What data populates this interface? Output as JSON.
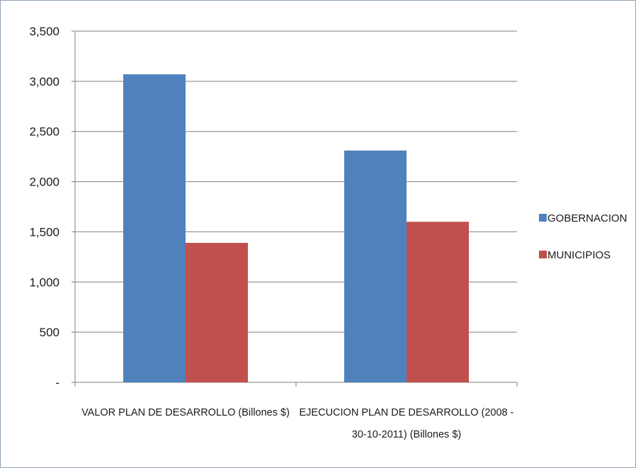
{
  "chart_data": {
    "type": "bar",
    "categories": [
      [
        "VALOR PLAN DE DESARROLLO (Billones $)"
      ],
      [
        "EJECUCION PLAN DE DESARROLLO (2008 -",
        "30-10-2011) (Billones $)"
      ]
    ],
    "series": [
      {
        "name": "GOBERNACION",
        "color": "#4f81bd",
        "values": [
          3070,
          2310
        ]
      },
      {
        "name": "MUNICIPIOS",
        "color": "#c0504d",
        "values": [
          1390,
          1600
        ]
      }
    ],
    "yticks": [
      "-",
      "500",
      "1,000",
      "1,500",
      "2,000",
      "2,500",
      "3,000",
      "3,500"
    ],
    "ylim": [
      0,
      3500
    ],
    "grid": true,
    "legend_position": "right",
    "title": "",
    "xlabel": "",
    "ylabel": ""
  }
}
